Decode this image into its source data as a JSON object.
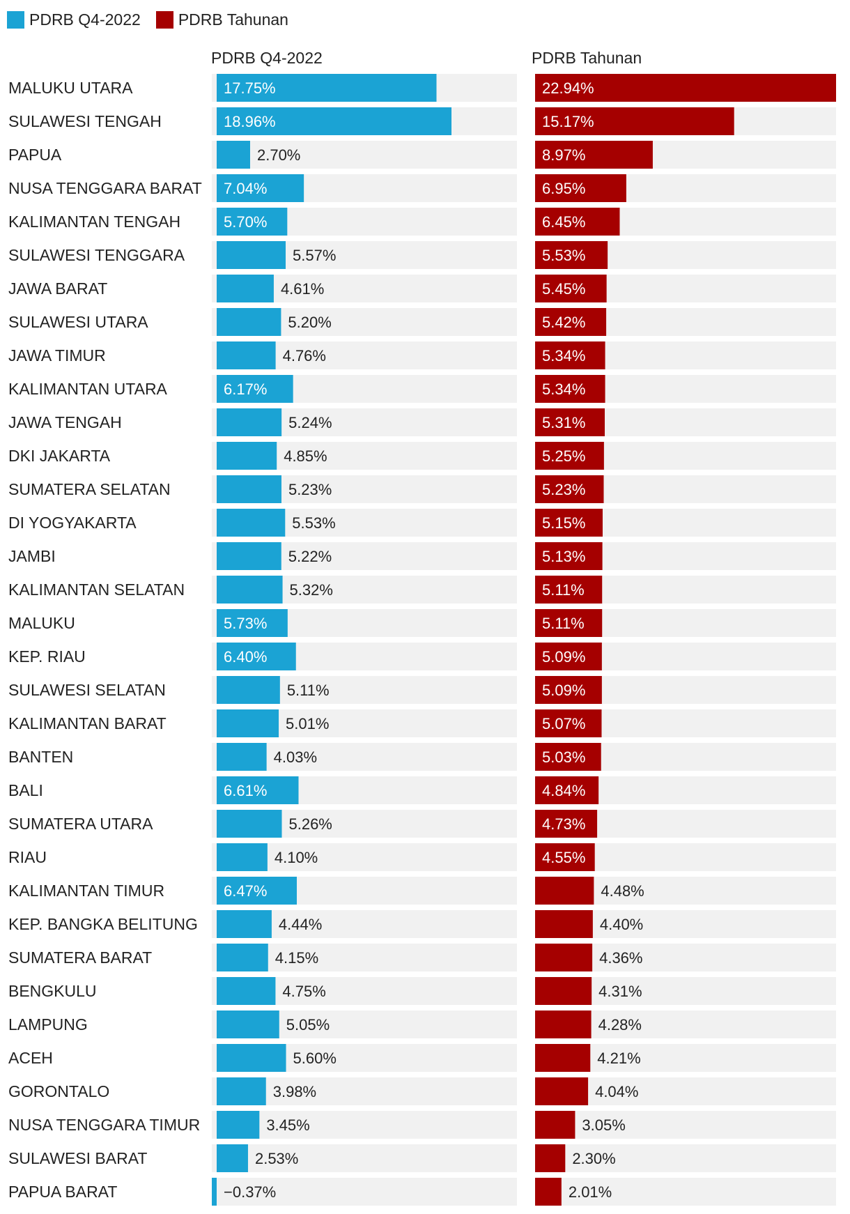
{
  "legend": [
    {
      "label": "PDRB Q4-2022",
      "color": "#1ba3d4"
    },
    {
      "label": "PDRB Tahunan",
      "color": "#a50000"
    }
  ],
  "columns": {
    "q4_title": "PDRB Q4-2022",
    "annual_title": "PDRB Tahunan"
  },
  "colors": {
    "q4": "#1ba3d4",
    "annual": "#a50000",
    "track": "#f1f1f1"
  },
  "chart_data": {
    "type": "bar",
    "orientation": "horizontal",
    "unit": "%",
    "categories": [
      "MALUKU UTARA",
      "SULAWESI TENGAH",
      "PAPUA",
      "NUSA TENGGARA BARAT",
      "KALIMANTAN TENGAH",
      "SULAWESI TENGGARA",
      "JAWA BARAT",
      "SULAWESI UTARA",
      "JAWA TIMUR",
      "KALIMANTAN UTARA",
      "JAWA TENGAH",
      "DKI JAKARTA",
      "SUMATERA SELATAN",
      "DI YOGYAKARTA",
      "JAMBI",
      "KALIMANTAN SELATAN",
      "MALUKU",
      "KEP. RIAU",
      "SULAWESI SELATAN",
      "KALIMANTAN BARAT",
      "BANTEN",
      "BALI",
      "SUMATERA UTARA",
      "RIAU",
      "KALIMANTAN TIMUR",
      "KEP. BANGKA BELITUNG",
      "SUMATERA BARAT",
      "BENGKULU",
      "LAMPUNG",
      "ACEH",
      "GORONTALO",
      "NUSA TENGGARA TIMUR",
      "SULAWESI BARAT",
      "PAPUA BARAT"
    ],
    "series": [
      {
        "name": "PDRB Q4-2022",
        "values": [
          17.75,
          18.96,
          2.7,
          7.04,
          5.7,
          5.57,
          4.61,
          5.2,
          4.76,
          6.17,
          5.24,
          4.85,
          5.23,
          5.53,
          5.22,
          5.32,
          5.73,
          6.4,
          5.11,
          5.01,
          4.03,
          6.61,
          5.26,
          4.1,
          6.47,
          4.44,
          4.15,
          4.75,
          5.05,
          5.6,
          3.98,
          3.45,
          2.53,
          -0.37
        ],
        "labels": [
          "17.75%",
          "18.96%",
          "2.70%",
          "7.04%",
          "5.70%",
          "5.57%",
          "4.61%",
          "5.20%",
          "4.76%",
          "6.17%",
          "5.24%",
          "4.85%",
          "5.23%",
          "5.53%",
          "5.22%",
          "5.32%",
          "5.73%",
          "6.40%",
          "5.11%",
          "5.01%",
          "4.03%",
          "6.61%",
          "5.26%",
          "4.10%",
          "6.47%",
          "4.44%",
          "4.15%",
          "4.75%",
          "5.05%",
          "5.60%",
          "3.98%",
          "3.45%",
          "2.53%",
          "−0.37%"
        ]
      },
      {
        "name": "PDRB Tahunan",
        "values": [
          22.94,
          15.17,
          8.97,
          6.95,
          6.45,
          5.53,
          5.45,
          5.42,
          5.34,
          5.34,
          5.31,
          5.25,
          5.23,
          5.15,
          5.13,
          5.11,
          5.11,
          5.09,
          5.09,
          5.07,
          5.03,
          4.84,
          4.73,
          4.55,
          4.48,
          4.4,
          4.36,
          4.31,
          4.28,
          4.21,
          4.04,
          3.05,
          2.3,
          2.01
        ],
        "labels": [
          "22.94%",
          "15.17%",
          "8.97%",
          "6.95%",
          "6.45%",
          "5.53%",
          "5.45%",
          "5.42%",
          "5.34%",
          "5.34%",
          "5.31%",
          "5.25%",
          "5.23%",
          "5.15%",
          "5.13%",
          "5.11%",
          "5.11%",
          "5.09%",
          "5.09%",
          "5.07%",
          "5.03%",
          "4.84%",
          "4.73%",
          "4.55%",
          "4.48%",
          "4.40%",
          "4.36%",
          "4.31%",
          "4.28%",
          "4.21%",
          "4.04%",
          "3.05%",
          "2.30%",
          "2.01%"
        ]
      }
    ],
    "xlim_q4": [
      -0.37,
      22.94
    ],
    "xlim_annual": [
      0,
      22.94
    ],
    "legend_position": "top-left"
  }
}
